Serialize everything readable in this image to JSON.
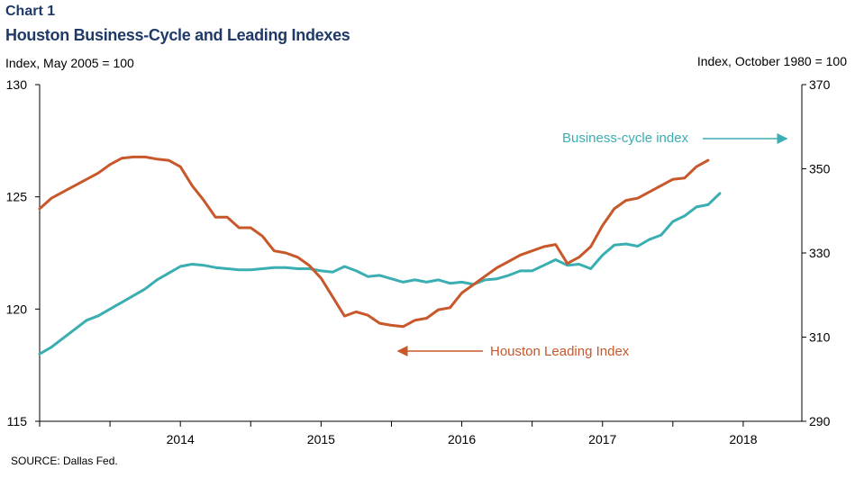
{
  "header": {
    "chart_label": "Chart 1",
    "title": "Houston Business-Cycle and Leading Indexes",
    "left_axis_unit": "Index,  May 2005 = 100",
    "right_axis_unit": "Index,  October 1980 = 100"
  },
  "footer": {
    "source": "SOURCE:  Dallas Fed."
  },
  "colors": {
    "business_cycle": "#3aaeb0",
    "leading": "#c8572a",
    "title": "#1f3a68"
  },
  "chart_data": {
    "type": "line",
    "x_start": "2013-07",
    "x_end": "2018-12",
    "x_ticks": [
      "2014",
      "2015",
      "2016",
      "2017",
      "2018"
    ],
    "y_left": {
      "min": 115,
      "max": 130,
      "ticks": [
        115,
        120,
        125,
        130
      ]
    },
    "y_right": {
      "min": 290,
      "max": 370,
      "ticks": [
        290,
        310,
        330,
        350,
        370
      ]
    },
    "grid": false,
    "series": [
      {
        "name": "Business-cycle index",
        "axis": "left",
        "start": "2013-07",
        "values": [
          118.0,
          118.3,
          118.7,
          119.1,
          119.5,
          119.7,
          120.0,
          120.3,
          120.6,
          120.9,
          121.3,
          121.6,
          121.9,
          122.0,
          121.95,
          121.85,
          121.8,
          121.75,
          121.75,
          121.8,
          121.85,
          121.85,
          121.8,
          121.8,
          121.7,
          121.65,
          121.9,
          121.7,
          121.45,
          121.5,
          121.35,
          121.2,
          121.3,
          121.2,
          121.3,
          121.15,
          121.2,
          121.1,
          121.3,
          121.35,
          121.5,
          121.7,
          121.7,
          121.95,
          122.2,
          121.95,
          122.0,
          121.8,
          122.4,
          122.85,
          122.9,
          122.8,
          123.1,
          123.3,
          123.9,
          124.15,
          124.55,
          124.65,
          125.15
        ]
      },
      {
        "name": "Houston Leading Index",
        "axis": "right",
        "start": "2013-07",
        "values": [
          340.5,
          343.0,
          344.5,
          346.0,
          347.5,
          349.0,
          351.0,
          352.5,
          352.8,
          352.8,
          352.3,
          352.0,
          350.5,
          346.0,
          342.5,
          338.5,
          338.5,
          336.0,
          336.0,
          334.0,
          330.5,
          330.0,
          329.0,
          327.0,
          324.0,
          319.5,
          315.0,
          316.0,
          315.2,
          313.3,
          312.8,
          312.5,
          314.0,
          314.5,
          316.5,
          317.0,
          320.5,
          322.5,
          324.5,
          326.5,
          328.0,
          329.5,
          330.5,
          331.5,
          332.0,
          327.5,
          329.0,
          331.5,
          336.5,
          340.5,
          342.5,
          343.0,
          344.5,
          346.0,
          347.5,
          347.8,
          350.5,
          352.0
        ]
      }
    ],
    "annotations": [
      {
        "text": "Business-cycle index",
        "arrow": "right"
      },
      {
        "text": "Houston  Leading Index",
        "arrow": "left"
      }
    ]
  }
}
